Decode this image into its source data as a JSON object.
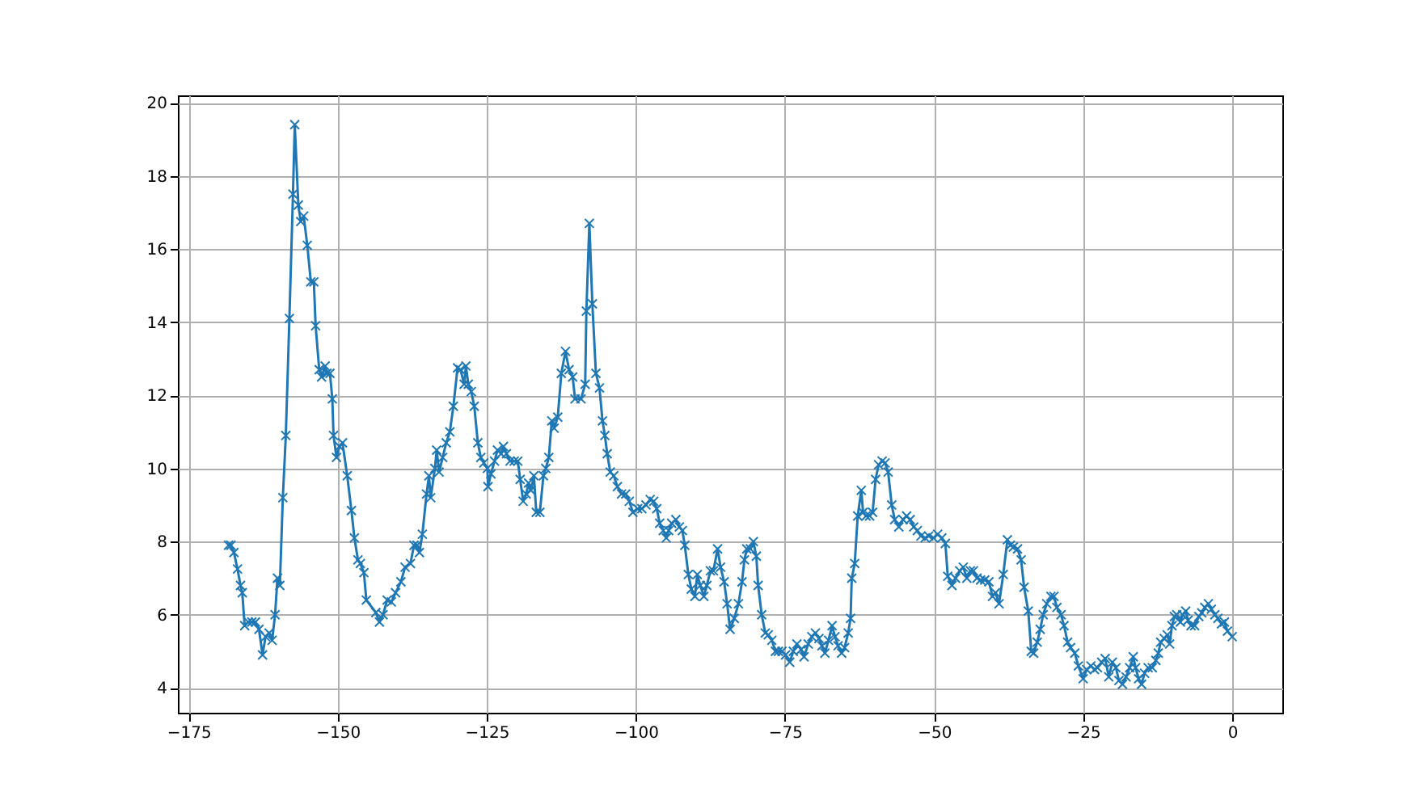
{
  "chart_data": {
    "type": "line",
    "x": [
      -168.3,
      -167.9,
      -167.4,
      -166.8,
      -166.3,
      -166,
      -165.6,
      -165,
      -164.4,
      -163.8,
      -163.2,
      -162.6,
      -162.1,
      -161.5,
      -161,
      -160.5,
      -160.1,
      -159.7,
      -159.2,
      -158.7,
      -158.1,
      -157.5,
      -157.2,
      -156.6,
      -156.2,
      -155.7,
      -155.1,
      -154.5,
      -154,
      -153.7,
      -153.1,
      -152.7,
      -152.1,
      -151.8,
      -151.3,
      -150.9,
      -150.7,
      -150.2,
      -149.7,
      -149.2,
      -148.4,
      -147.7,
      -147.2,
      -146.6,
      -146.2,
      -145.6,
      -145.2,
      -143.6,
      -143,
      -142.4,
      -141.7,
      -141,
      -140.3,
      -139.4,
      -138.7,
      -137.8,
      -137.2,
      -136.7,
      -136.3,
      -135.8,
      -135.1,
      -134.7,
      -134.4,
      -133.7,
      -133.4,
      -133,
      -132.4,
      -131.8,
      -131.2,
      -130.6,
      -129.9,
      -129.4,
      -128.8,
      -128.5,
      -128.1,
      -127.6,
      -127.1,
      -126.5,
      -126,
      -125.5,
      -124.9,
      -124.8,
      -124.3,
      -123.7,
      -123.2,
      -122.6,
      -122.2,
      -121.7,
      -121.1,
      -120.4,
      -119.8,
      -119.4,
      -118.9,
      -118.4,
      -118,
      -117.6,
      -117.1,
      -116.7,
      -116.1,
      -115.5,
      -115.1,
      -114.6,
      -114.1,
      -113.7,
      -113.1,
      -112.5,
      -111.8,
      -111.2,
      -110.6,
      -110.2,
      -109.2,
      -108.5,
      -108.3,
      -107.8,
      -107.3,
      -106.7,
      -106.1,
      -105.6,
      -105.2,
      -104.8,
      -104.3,
      -103.7,
      -103.1,
      -102.4,
      -101.7,
      -101.1,
      -100.5,
      -99.7,
      -99,
      -98.3,
      -97.6,
      -97,
      -96.5,
      -96,
      -95.4,
      -94.9,
      -94.5,
      -94,
      -93.3,
      -92.7,
      -92.2,
      -91.8,
      -91.2,
      -90.7,
      -90.1,
      -89.7,
      -89.2,
      -88.6,
      -88.1,
      -87.5,
      -87,
      -86.3,
      -85.8,
      -85.2,
      -84.7,
      -84.2,
      -83.5,
      -82.8,
      -82.2,
      -81.8,
      -81.4,
      -80.8,
      -80.3,
      -79.8,
      -79.5,
      -78.9,
      -78.3,
      -77.8,
      -77.2,
      -76.6,
      -76.1,
      -75.5,
      -74.9,
      -74.2,
      -73.6,
      -73,
      -72.3,
      -71.8,
      -71.1,
      -70.5,
      -69.9,
      -69.3,
      -68.8,
      -68.3,
      -67.7,
      -67.1,
      -66.6,
      -66.1,
      -65.5,
      -65,
      -64.4,
      -64,
      -63.8,
      -63.3,
      -62.8,
      -62.2,
      -61.9,
      -61.4,
      -60.8,
      -60.3,
      -59.8,
      -59.3,
      -58.7,
      -58.2,
      -57.7,
      -57.1,
      -56.6,
      -55.9,
      -55.2,
      -54.6,
      -54,
      -53.4,
      -52.8,
      -52.2,
      -51.5,
      -50.9,
      -50.1,
      -49.4,
      -48.7,
      -48.1,
      -47.7,
      -47,
      -46.4,
      -45.7,
      -45.1,
      -44.5,
      -43.9,
      -43.4,
      -42.8,
      -42.2,
      -41.5,
      -40.8,
      -40.2,
      -39.7,
      -39.1,
      -38.4,
      -37.7,
      -37.2,
      -36.7,
      -36,
      -35.4,
      -34.9,
      -34.2,
      -33.7,
      -33.3,
      -32.7,
      -32.2,
      -31.7,
      -31.1,
      -30.4,
      -29.9,
      -29.4,
      -28.7,
      -28.2,
      -27.6,
      -27.1,
      -26.4,
      -25.8,
      -25,
      -24.4,
      -23.7,
      -23.1,
      -22.6,
      -21.9,
      -21.3,
      -20.7,
      -20.1,
      -19.5,
      -19,
      -18.4,
      -17.8,
      -17.2,
      -16.6,
      -16.2,
      -15.7,
      -15.2,
      -14.7,
      -14.1,
      -13.4,
      -12.8,
      -12.4,
      -12,
      -11.4,
      -10.9,
      -10.5,
      -10.1,
      -9.7,
      -9.3,
      -8.7,
      -8.3,
      -7.8,
      -7.4,
      -6.9,
      -6.3,
      -5.6,
      -5.1,
      -4.6,
      -4,
      -3.5,
      -2.9,
      -2.4,
      -1.8,
      -1.3,
      -0.8,
      0
    ],
    "series": [
      {
        "color": "#1f77b4",
        "values": [
          7.9,
          7.9,
          7.7,
          7.25,
          6.8,
          6.6,
          5.7,
          5.8,
          5.8,
          5.8,
          5.6,
          4.9,
          5.4,
          5.5,
          5.3,
          6.0,
          7.0,
          6.8,
          9.2,
          10.9,
          14.1,
          17.5,
          19.4,
          17.2,
          16.75,
          16.9,
          16.1,
          15.1,
          15.1,
          13.9,
          12.7,
          12.5,
          12.8,
          12.6,
          12.6,
          11.9,
          10.9,
          10.3,
          10.6,
          10.7,
          9.8,
          8.85,
          8.1,
          7.5,
          7.4,
          7.15,
          6.4,
          6.06,
          5.8,
          6.0,
          6.4,
          6.35,
          6.6,
          6.9,
          7.3,
          7.4,
          7.9,
          7.9,
          7.7,
          8.2,
          9.3,
          9.8,
          9.2,
          10.0,
          10.5,
          9.9,
          10.3,
          10.7,
          11.0,
          11.7,
          12.75,
          12.7,
          12.3,
          12.8,
          12.3,
          12.1,
          11.7,
          10.7,
          10.3,
          10.15,
          10.0,
          9.5,
          9.85,
          10.2,
          10.5,
          10.4,
          10.6,
          10.4,
          10.2,
          10.2,
          10.2,
          9.7,
          9.1,
          9.3,
          9.6,
          9.4,
          9.8,
          8.8,
          8.8,
          9.8,
          10.0,
          10.3,
          11.3,
          11.1,
          11.4,
          12.6,
          13.2,
          12.7,
          12.5,
          11.9,
          11.9,
          12.3,
          14.3,
          16.7,
          14.5,
          12.6,
          12.2,
          11.3,
          10.9,
          10.4,
          9.9,
          9.8,
          9.5,
          9.3,
          9.3,
          9.1,
          8.8,
          8.9,
          8.9,
          9.0,
          9.15,
          9.1,
          8.9,
          8.5,
          8.3,
          8.1,
          8.3,
          8.5,
          8.6,
          8.4,
          8.3,
          7.9,
          7.1,
          6.7,
          6.5,
          7.1,
          6.8,
          6.5,
          6.8,
          7.2,
          7.2,
          7.8,
          7.3,
          6.9,
          6.3,
          5.6,
          5.9,
          6.3,
          6.9,
          7.5,
          7.8,
          7.8,
          8.0,
          7.6,
          6.8,
          6.0,
          5.5,
          5.45,
          5.3,
          5.0,
          5.0,
          5.0,
          4.9,
          4.7,
          5.0,
          5.2,
          5.05,
          4.85,
          5.2,
          5.4,
          5.5,
          5.35,
          5.15,
          4.95,
          5.3,
          5.7,
          5.4,
          5.15,
          4.95,
          5.1,
          5.5,
          5.9,
          7.0,
          7.4,
          8.7,
          9.4,
          8.8,
          8.7,
          8.7,
          8.8,
          9.7,
          10.1,
          10.2,
          10.15,
          9.9,
          9.0,
          8.6,
          8.4,
          8.6,
          8.7,
          8.6,
          8.4,
          8.3,
          8.15,
          8.1,
          8.15,
          8.1,
          8.2,
          8.1,
          7.95,
          7.05,
          6.8,
          7.0,
          7.2,
          7.3,
          7.0,
          7.2,
          7.2,
          7.0,
          6.95,
          6.95,
          6.9,
          6.5,
          6.6,
          6.3,
          7.1,
          8.05,
          7.9,
          7.85,
          7.8,
          7.5,
          6.75,
          6.1,
          5.0,
          4.95,
          5.25,
          5.6,
          6.0,
          6.3,
          6.5,
          6.5,
          6.2,
          6.0,
          5.7,
          5.25,
          5.1,
          4.95,
          4.6,
          4.25,
          4.5,
          4.6,
          4.5,
          4.55,
          4.7,
          4.8,
          4.3,
          4.7,
          4.55,
          4.2,
          4.1,
          4.3,
          4.55,
          4.85,
          4.55,
          4.25,
          4.1,
          4.4,
          4.55,
          4.55,
          4.75,
          4.95,
          5.25,
          5.35,
          5.45,
          5.2,
          5.7,
          5.95,
          6.0,
          5.8,
          6.0,
          6.1,
          5.85,
          5.7,
          5.7,
          5.95,
          6.05,
          6.2,
          6.3,
          6.15,
          6.0,
          5.9,
          5.75,
          5.8,
          5.55,
          5.4
        ]
      }
    ],
    "xlim": [
      -176.8,
      8.4
    ],
    "xticks": [
      -175,
      -150,
      -125,
      -100,
      -75,
      -50,
      -25,
      0
    ],
    "ylim": [
      3.32,
      20.2
    ],
    "yticks": [
      4,
      6,
      8,
      10,
      12,
      14,
      16,
      18,
      20
    ],
    "grid": true,
    "marker": "cross",
    "line_style": "solid"
  }
}
